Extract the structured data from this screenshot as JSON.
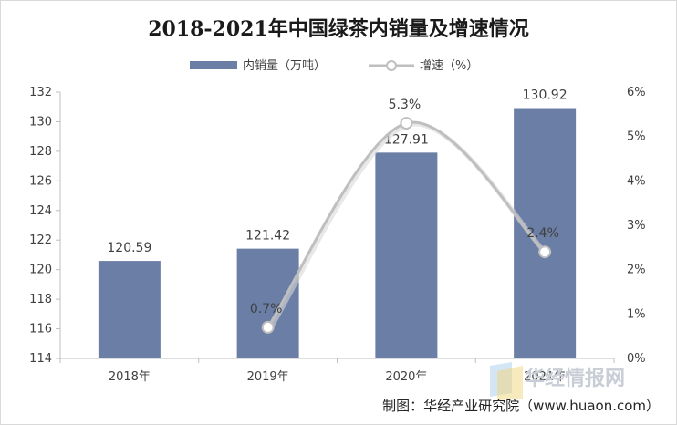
{
  "chart_data": {
    "type": "bar",
    "title": "2018-2021年中国绿茶内销量及增速情况",
    "categories": [
      "2018年",
      "2019年",
      "2020年",
      "2021年"
    ],
    "series": [
      {
        "name": "内销量（万吨）",
        "type": "bar",
        "axis": "left",
        "values": [
          120.59,
          121.42,
          127.91,
          130.92
        ],
        "labels": [
          "120.59",
          "121.42",
          "127.91",
          "130.92"
        ],
        "color": "#6a7ea6"
      },
      {
        "name": "增速（%）",
        "type": "line",
        "axis": "right",
        "smooth": true,
        "values": [
          null,
          0.7,
          5.3,
          2.4
        ],
        "labels": [
          "",
          "0.7%",
          "5.3%",
          "2.4%"
        ],
        "color": "#bfbfbf"
      }
    ],
    "y_left": {
      "range": [
        114,
        132
      ],
      "ticks": [
        "114",
        "116",
        "118",
        "120",
        "122",
        "124",
        "126",
        "128",
        "130",
        "132"
      ]
    },
    "y_right": {
      "range": [
        0,
        6
      ],
      "ticks": [
        "0%",
        "1%",
        "2%",
        "3%",
        "4%",
        "5%",
        "6%"
      ]
    },
    "grid": false,
    "legend_position": "top-center"
  },
  "credit": "制图：华经产业研究院（www.huaon.com）",
  "watermark": "华经情报网"
}
